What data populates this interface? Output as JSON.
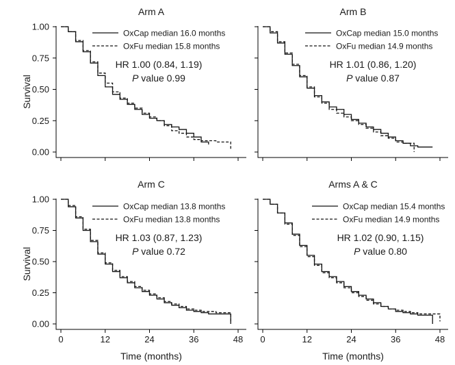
{
  "chart_data": [
    {
      "type": "line",
      "title": "Arm A",
      "ylabel": "Survival",
      "xlabel": "",
      "xlim": [
        0,
        48
      ],
      "ylim": [
        0,
        1
      ],
      "yticks": [
        "0.00",
        "0.25",
        "0.50",
        "0.75",
        "1.00"
      ],
      "xticks": [],
      "series": [
        {
          "name": "OxCap  median 16.0 months",
          "style": "solid",
          "x": [
            0,
            2,
            4,
            6,
            8,
            10,
            12,
            14,
            16,
            18,
            20,
            22,
            24,
            26,
            28,
            30,
            32,
            34,
            36,
            38,
            40
          ],
          "y": [
            1.0,
            0.96,
            0.88,
            0.8,
            0.71,
            0.61,
            0.52,
            0.46,
            0.42,
            0.38,
            0.34,
            0.3,
            0.27,
            0.25,
            0.22,
            0.2,
            0.18,
            0.15,
            0.12,
            0.08,
            0.06
          ]
        },
        {
          "name": "OxFu median 15.8 months",
          "style": "dashed",
          "x": [
            0,
            2,
            4,
            6,
            8,
            10,
            12,
            14,
            16,
            18,
            20,
            22,
            24,
            26,
            28,
            30,
            32,
            34,
            36,
            38,
            40,
            42,
            44,
            46
          ],
          "y": [
            1.0,
            0.96,
            0.89,
            0.81,
            0.72,
            0.63,
            0.55,
            0.48,
            0.43,
            0.39,
            0.35,
            0.31,
            0.28,
            0.25,
            0.21,
            0.17,
            0.15,
            0.12,
            0.1,
            0.09,
            0.09,
            0.08,
            0.08,
            0.02
          ]
        }
      ],
      "hr_text": "HR 1.00 (0.84, 1.19)",
      "p_label": "P",
      "p_value": "value 0.99"
    },
    {
      "type": "line",
      "title": "Arm B",
      "ylabel": "",
      "xlabel": "",
      "xlim": [
        0,
        48
      ],
      "ylim": [
        0,
        1
      ],
      "yticks": [],
      "xticks": [],
      "series": [
        {
          "name": "OxCap  median 15.0 months",
          "style": "solid",
          "x": [
            0,
            2,
            4,
            6,
            8,
            10,
            12,
            14,
            16,
            18,
            20,
            22,
            24,
            26,
            28,
            30,
            32,
            34,
            36,
            38,
            40,
            42,
            44,
            46
          ],
          "y": [
            1.0,
            0.95,
            0.87,
            0.78,
            0.69,
            0.6,
            0.51,
            0.45,
            0.4,
            0.36,
            0.34,
            0.3,
            0.26,
            0.23,
            0.2,
            0.18,
            0.15,
            0.12,
            0.09,
            0.07,
            0.05,
            0.04,
            0.04,
            0.04
          ]
        },
        {
          "name": "OxFu median 14.9 months",
          "style": "dashed",
          "x": [
            0,
            2,
            4,
            6,
            8,
            10,
            12,
            14,
            16,
            18,
            20,
            22,
            24,
            26,
            28,
            30,
            32,
            34,
            36,
            38,
            40,
            41
          ],
          "y": [
            1.0,
            0.96,
            0.88,
            0.79,
            0.7,
            0.61,
            0.52,
            0.44,
            0.39,
            0.34,
            0.31,
            0.28,
            0.25,
            0.22,
            0.19,
            0.16,
            0.13,
            0.11,
            0.08,
            0.07,
            0.07,
            0.0
          ]
        }
      ],
      "hr_text": "HR 1.01 (0.86, 1.20)",
      "p_label": "P",
      "p_value": "value 0.87"
    },
    {
      "type": "line",
      "title": "Arm C",
      "ylabel": "Survival",
      "xlabel": "Time (months)",
      "xlim": [
        0,
        48
      ],
      "ylim": [
        0,
        1
      ],
      "yticks": [
        "0.00",
        "0.25",
        "0.50",
        "0.75",
        "1.00"
      ],
      "xticks": [
        "0",
        "12",
        "24",
        "36",
        "48"
      ],
      "series": [
        {
          "name": "OxCap  median 13.8 months",
          "style": "solid",
          "x": [
            0,
            2,
            4,
            6,
            8,
            10,
            12,
            14,
            16,
            18,
            20,
            22,
            24,
            26,
            28,
            30,
            32,
            34,
            36,
            38,
            40,
            42,
            44,
            46
          ],
          "y": [
            1.0,
            0.94,
            0.85,
            0.75,
            0.66,
            0.56,
            0.48,
            0.42,
            0.37,
            0.33,
            0.29,
            0.26,
            0.23,
            0.2,
            0.17,
            0.15,
            0.13,
            0.11,
            0.1,
            0.09,
            0.08,
            0.08,
            0.08,
            0.0
          ]
        },
        {
          "name": "OxFu median 13.8 months",
          "style": "dashed",
          "x": [
            0,
            2,
            4,
            6,
            8,
            10,
            12,
            14,
            16,
            18,
            20,
            22,
            24,
            26,
            28,
            30,
            32,
            34,
            36,
            38,
            40,
            42,
            44,
            46
          ],
          "y": [
            1.0,
            0.95,
            0.86,
            0.76,
            0.67,
            0.57,
            0.49,
            0.43,
            0.38,
            0.34,
            0.3,
            0.27,
            0.24,
            0.21,
            0.18,
            0.16,
            0.14,
            0.12,
            0.11,
            0.1,
            0.1,
            0.09,
            0.09,
            0.02
          ]
        }
      ],
      "hr_text": "HR 1.03 (0.87, 1.23)",
      "p_label": "P",
      "p_value": "value 0.72"
    },
    {
      "type": "line",
      "title": "Arms A & C",
      "ylabel": "",
      "xlabel": "Time (months)",
      "xlim": [
        0,
        48
      ],
      "ylim": [
        0,
        1
      ],
      "yticks": [],
      "xticks": [
        "0",
        "12",
        "24",
        "36",
        "48"
      ],
      "series": [
        {
          "name": "OxCap median 15.4 months",
          "style": "solid",
          "x": [
            0,
            2,
            4,
            6,
            8,
            10,
            12,
            14,
            16,
            18,
            20,
            22,
            24,
            26,
            28,
            30,
            32,
            34,
            36,
            38,
            40,
            42,
            44,
            46
          ],
          "y": [
            1.0,
            0.96,
            0.89,
            0.81,
            0.72,
            0.63,
            0.55,
            0.48,
            0.42,
            0.38,
            0.34,
            0.3,
            0.26,
            0.23,
            0.2,
            0.17,
            0.14,
            0.12,
            0.1,
            0.09,
            0.08,
            0.07,
            0.07,
            0.0
          ]
        },
        {
          "name": "OxFu median 14.9 months",
          "style": "dashed",
          "x": [
            0,
            2,
            4,
            6,
            8,
            10,
            12,
            14,
            16,
            18,
            20,
            22,
            24,
            26,
            28,
            30,
            32,
            34,
            36,
            38,
            40,
            42,
            44,
            46,
            48
          ],
          "y": [
            1.0,
            0.96,
            0.89,
            0.8,
            0.71,
            0.62,
            0.54,
            0.47,
            0.41,
            0.37,
            0.33,
            0.29,
            0.25,
            0.22,
            0.19,
            0.16,
            0.14,
            0.12,
            0.11,
            0.1,
            0.09,
            0.08,
            0.08,
            0.08,
            0.02
          ]
        }
      ],
      "hr_text": "HR 1.02 (0.90, 1.15)",
      "p_label": "P",
      "p_value": "value 0.80"
    }
  ]
}
